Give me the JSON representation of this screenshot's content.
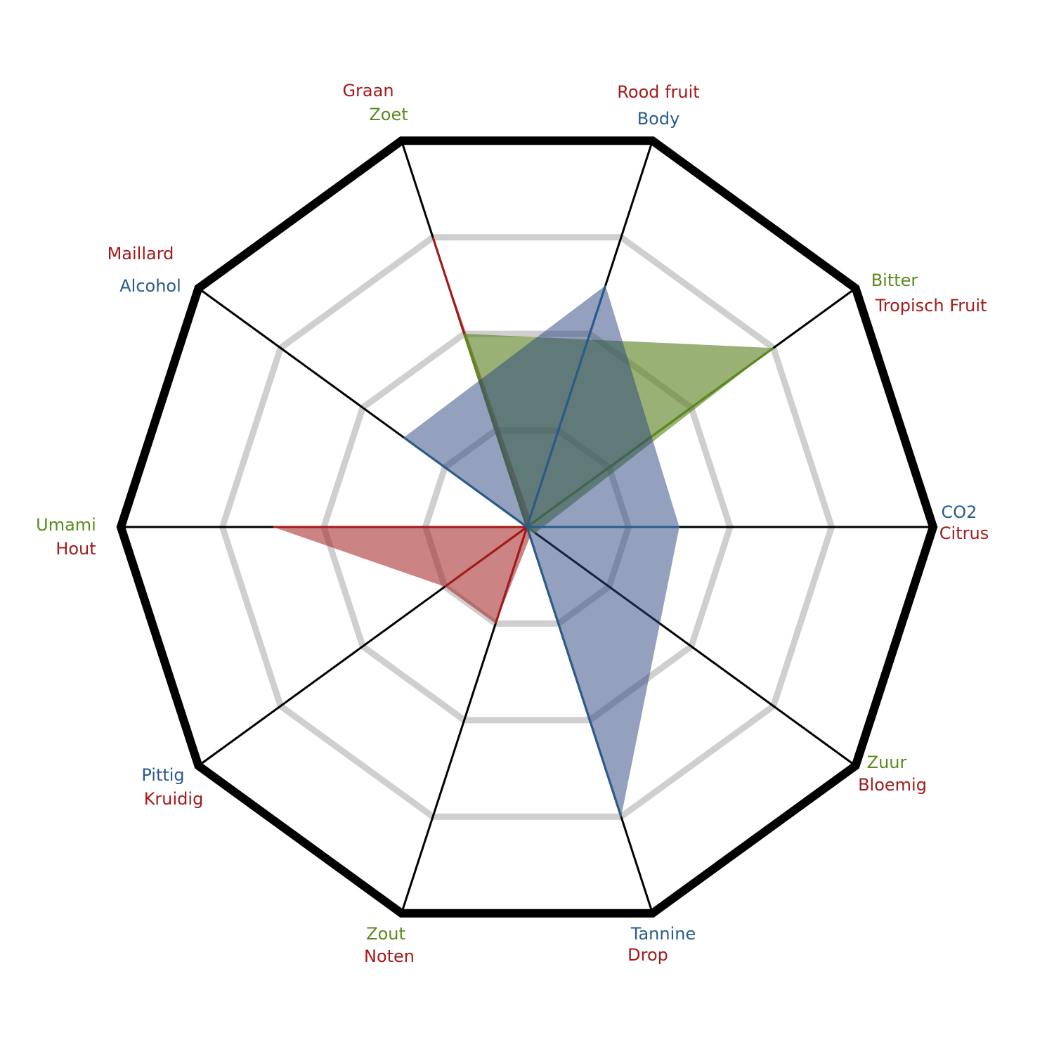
{
  "chart_data": {
    "type": "radar",
    "rlim": [
      0,
      4
    ],
    "rticks": [
      1,
      2,
      3,
      4
    ],
    "grid": true,
    "series": [
      {
        "color": "#a31a1a",
        "fill": "rgba(160,30,30,0.55)",
        "categories": [
          "Citrus",
          "Tropisch Fruit",
          "Rood fruit",
          "Graan",
          "Maillard",
          "Hout",
          "Kruidig",
          "Noten",
          "Drop",
          "Bloemig"
        ],
        "values": [
          0,
          0,
          0.1,
          3,
          0,
          2.5,
          1,
          1,
          0.1,
          0
        ]
      },
      {
        "color": "#5b8a1c",
        "fill": "rgba(85,125,25,0.6)",
        "categories": [
          "Bitter",
          "Zoet",
          "Umami",
          "Zout",
          "Zuur"
        ],
        "values": [
          3,
          2,
          0,
          0,
          0.1
        ]
      },
      {
        "color": "#2a5b8c",
        "fill": "rgba(40,65,125,0.5)",
        "categories": [
          "CO2",
          "Body",
          "Alcohol",
          "Pittig",
          "Tannine"
        ],
        "values": [
          1.5,
          2.5,
          1.5,
          0,
          3
        ]
      }
    ]
  }
}
